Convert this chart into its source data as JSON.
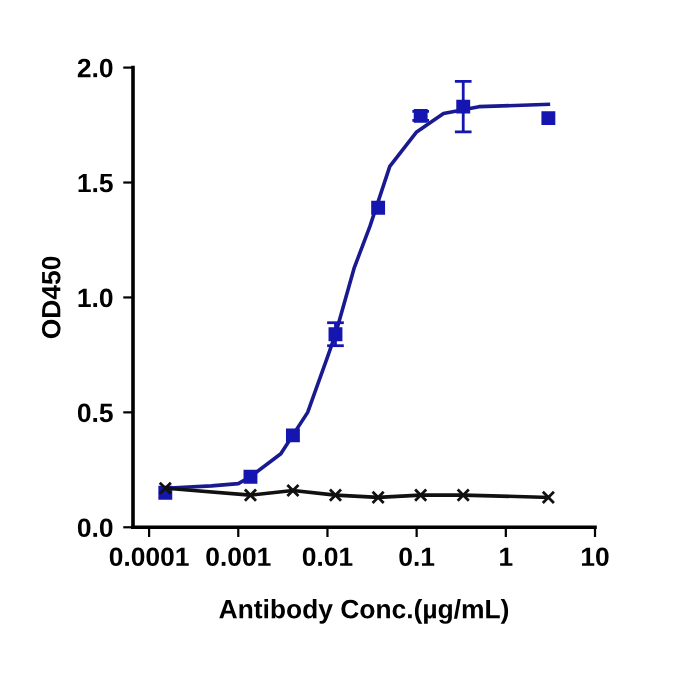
{
  "chart_data": {
    "type": "scatter",
    "xlabel": "Antibody Conc.(µg/mL)",
    "ylabel": "OD450",
    "log": "x",
    "xlim": [
      6.6e-05,
      10
    ],
    "xticks": [
      {
        "value": 0.0001,
        "label": "0.0001"
      },
      {
        "value": 0.001,
        "label": "0.001"
      },
      {
        "value": 0.01,
        "label": "0.01"
      },
      {
        "value": 0.1,
        "label": "0.1"
      },
      {
        "value": 1,
        "label": "1"
      },
      {
        "value": 10,
        "label": "10"
      }
    ],
    "ylim": [
      0,
      2.0
    ],
    "yticks": [
      {
        "value": 0,
        "label": "0.0"
      },
      {
        "value": 0.5,
        "label": "0.5"
      },
      {
        "value": 1.0,
        "label": "1.0"
      },
      {
        "value": 1.5,
        "label": "1.5"
      },
      {
        "value": 2.0,
        "label": "2.0"
      }
    ],
    "grid": false,
    "series": [
      {
        "color": "#1515b0",
        "marker": "square",
        "x": [
          0.000152,
          0.00137,
          0.0041,
          0.0123,
          0.037,
          0.111,
          0.333,
          3
        ],
        "values": [
          0.15,
          0.22,
          0.4,
          0.84,
          1.39,
          1.79,
          1.83,
          1.78
        ],
        "errors": [
          null,
          null,
          null,
          0.05,
          null,
          0.02,
          0.11,
          null
        ]
      },
      {
        "type": "line",
        "color": "#1a1a90",
        "marker": "none",
        "line_style": "solid",
        "x": [
          0.000152,
          0.0005,
          0.001,
          0.00137,
          0.003,
          0.006,
          0.01,
          0.0123,
          0.02,
          0.03,
          0.05,
          0.1,
          0.2,
          0.5,
          3
        ],
        "values": [
          0.17,
          0.18,
          0.19,
          0.22,
          0.32,
          0.5,
          0.74,
          0.84,
          1.13,
          1.31,
          1.57,
          1.72,
          1.8,
          1.83,
          1.84
        ]
      },
      {
        "type": "line",
        "color": "#111111",
        "marker": "cross",
        "line_style": "solid",
        "x": [
          0.000152,
          0.00137,
          0.0041,
          0.0123,
          0.037,
          0.111,
          0.333,
          3
        ],
        "values": [
          0.17,
          0.14,
          0.16,
          0.14,
          0.13,
          0.14,
          0.14,
          0.13
        ]
      }
    ]
  }
}
